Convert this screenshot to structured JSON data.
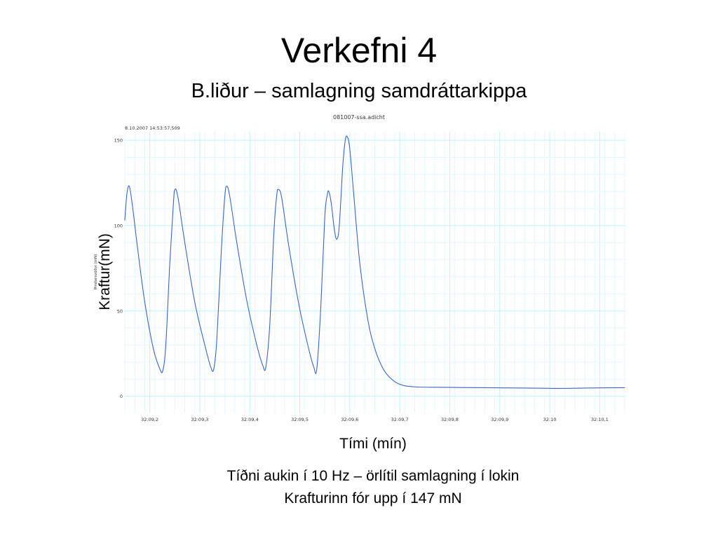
{
  "slide": {
    "title": "Verkefni 4",
    "subtitle": "B.liður – samlagning samdráttarkippa",
    "y_axis_label": "Kraftur(mN)",
    "x_axis_label": "Tími (mín)",
    "caption_line1": "Tíðni aukin í 10 Hz – örlítil samlagning í lokin",
    "caption_line2": "Krafturinn fór upp í 147 mN"
  },
  "chart_data": {
    "type": "line",
    "title": "081007-ssa.adicht",
    "timestamp": "8.10.2007 14:53:57,509",
    "ylabel": "Þindarsvöðvi (mN)",
    "xlabel": "",
    "ylim": [
      -10,
      155
    ],
    "xlim": [
      0,
      1
    ],
    "grid": true,
    "colors": {
      "line": "#3a64c8",
      "grid": "#bff0fb",
      "minor_grid": "#e4f8fc"
    },
    "yticks": [
      0,
      50,
      100,
      150
    ],
    "xticks": [
      {
        "x": 0.05,
        "label": "32:09,2"
      },
      {
        "x": 0.15,
        "label": "32:09,3"
      },
      {
        "x": 0.25,
        "label": "32:09,4"
      },
      {
        "x": 0.35,
        "label": "32:09,5"
      },
      {
        "x": 0.45,
        "label": "32:09,6"
      },
      {
        "x": 0.55,
        "label": "32:09,7"
      },
      {
        "x": 0.65,
        "label": "32:09,8"
      },
      {
        "x": 0.75,
        "label": "32:09,9"
      },
      {
        "x": 0.85,
        "label": "32:10"
      },
      {
        "x": 0.95,
        "label": "32:10,1"
      }
    ],
    "series": [
      {
        "values": [
          [
            0.0,
            103
          ],
          [
            0.004,
            118
          ],
          [
            0.009,
            123
          ],
          [
            0.016,
            110
          ],
          [
            0.025,
            88
          ],
          [
            0.04,
            55
          ],
          [
            0.057,
            28
          ],
          [
            0.07,
            16
          ],
          [
            0.076,
            15
          ],
          [
            0.082,
            30
          ],
          [
            0.09,
            78
          ],
          [
            0.097,
            112
          ],
          [
            0.1,
            121
          ],
          [
            0.106,
            117
          ],
          [
            0.12,
            90
          ],
          [
            0.14,
            55
          ],
          [
            0.16,
            30
          ],
          [
            0.172,
            17
          ],
          [
            0.178,
            16
          ],
          [
            0.184,
            33
          ],
          [
            0.193,
            85
          ],
          [
            0.2,
            117
          ],
          [
            0.204,
            123
          ],
          [
            0.21,
            117
          ],
          [
            0.224,
            90
          ],
          [
            0.244,
            56
          ],
          [
            0.264,
            30
          ],
          [
            0.276,
            18
          ],
          [
            0.282,
            17
          ],
          [
            0.29,
            42
          ],
          [
            0.298,
            95
          ],
          [
            0.304,
            118
          ],
          [
            0.308,
            121
          ],
          [
            0.314,
            116
          ],
          [
            0.328,
            88
          ],
          [
            0.348,
            54
          ],
          [
            0.366,
            30
          ],
          [
            0.378,
            17
          ],
          [
            0.384,
            16
          ],
          [
            0.392,
            52
          ],
          [
            0.4,
            105
          ],
          [
            0.405,
            118
          ],
          [
            0.408,
            120
          ],
          [
            0.413,
            113
          ],
          [
            0.419,
            98
          ],
          [
            0.424,
            92
          ],
          [
            0.429,
            100
          ],
          [
            0.436,
            135
          ],
          [
            0.441,
            150
          ],
          [
            0.445,
            152
          ],
          [
            0.45,
            145
          ],
          [
            0.458,
            118
          ],
          [
            0.47,
            78
          ],
          [
            0.486,
            45
          ],
          [
            0.5,
            28
          ],
          [
            0.515,
            17
          ],
          [
            0.53,
            11
          ],
          [
            0.55,
            7
          ],
          [
            0.58,
            5.5
          ],
          [
            0.65,
            5.2
          ],
          [
            0.72,
            5
          ],
          [
            0.8,
            4.8
          ],
          [
            0.86,
            4.6
          ],
          [
            0.9,
            4.7
          ],
          [
            0.95,
            4.9
          ],
          [
            1.0,
            5
          ]
        ]
      }
    ]
  }
}
